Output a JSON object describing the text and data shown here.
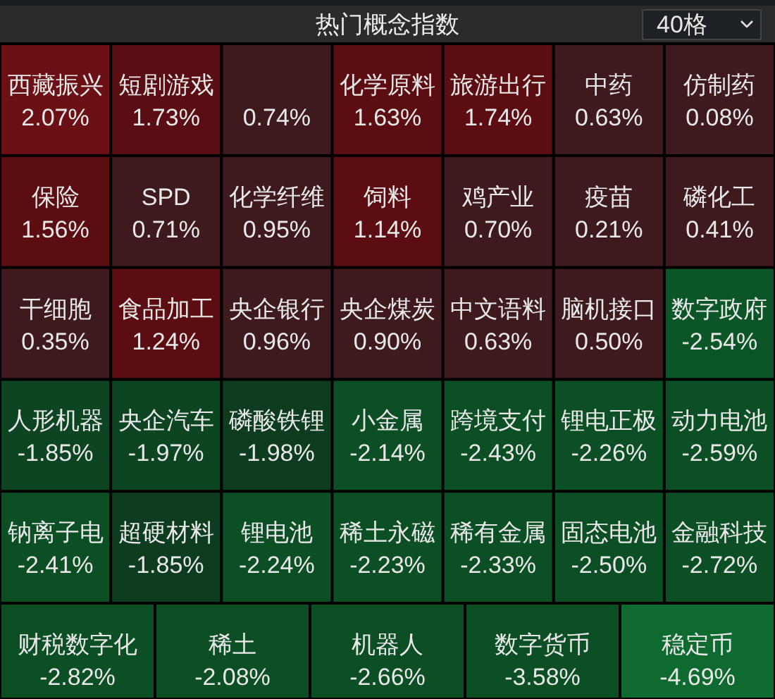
{
  "chart_data": {
    "type": "other",
    "title": "热门概念指数",
    "annotations": [
      "40格"
    ],
    "categories": [
      "西藏振兴",
      "短剧游戏",
      null,
      "化学原料",
      "旅游出行",
      "中药",
      "仿制药",
      "保险",
      "SPD",
      "化学纤维",
      "饲料",
      "鸡产业",
      "疫苗",
      "磷化工",
      "干细胞",
      "食品加工",
      "央企银行",
      "央企煤炭",
      "中文语料",
      "脑机接口",
      "数字政府",
      "人形机器",
      "央企汽车",
      "磷酸铁锂",
      "小金属",
      "跨境支付",
      "锂电正极",
      "动力电池",
      "钠离子电",
      "超硬材料",
      "锂电池",
      "稀土永磁",
      "稀有金属",
      "固态电池",
      "金融科技",
      "财税数字化",
      "稀土",
      "机器人",
      "数字货币",
      "稳定币"
    ],
    "values": [
      2.07,
      1.73,
      0.74,
      1.63,
      1.74,
      0.63,
      0.08,
      1.56,
      0.71,
      0.95,
      1.14,
      0.7,
      0.21,
      0.41,
      0.35,
      1.24,
      0.96,
      0.9,
      0.63,
      0.5,
      -2.54,
      -1.85,
      -1.97,
      -1.98,
      -2.14,
      -2.43,
      -2.26,
      -2.59,
      -2.41,
      -1.85,
      -2.24,
      -2.23,
      -2.33,
      -2.5,
      -2.72,
      -2.82,
      -2.08,
      -2.66,
      -3.58,
      -4.69
    ],
    "value_labels": [
      "2.07%",
      "1.73%",
      "0.74%",
      "1.63%",
      "1.74%",
      "0.63%",
      "0.08%",
      "1.56%",
      "0.71%",
      "0.95%",
      "1.14%",
      "0.70%",
      "0.21%",
      "0.41%",
      "0.35%",
      "1.24%",
      "0.96%",
      "0.90%",
      "0.63%",
      "0.50%",
      "-2.54%",
      "-1.85%",
      "-1.97%",
      "-1.98%",
      "-2.14%",
      "-2.43%",
      "-2.26%",
      "-2.59%",
      "-2.41%",
      "-1.85%",
      "-2.24%",
      "-2.23%",
      "-2.33%",
      "-2.50%",
      "-2.72%",
      "-2.82%",
      "-2.08%",
      "-2.66%",
      "-3.58%",
      "-4.69%"
    ],
    "colors": [
      "#6b1015",
      "#5a0d12",
      "#3e1a1f",
      "#5c0d12",
      "#5c0d12",
      "#3e1a1f",
      "#3e1a1f",
      "#5c0d12",
      "#3e1a1f",
      "#3e1a1f",
      "#5c0d12",
      "#3e1a1f",
      "#3e1a1f",
      "#3e1a1f",
      "#3e1a1f",
      "#5c0d12",
      "#3e1a1f",
      "#3e1a1f",
      "#3e1a1f",
      "#3e1a1f",
      "#0c5526",
      "#0d4522",
      "#0d4522",
      "#0d3d1e",
      "#0c4f24",
      "#0c4f24",
      "#0c4f24",
      "#0c4f24",
      "#0c4f24",
      "#0d3d1e",
      "#0c4f24",
      "#0c4f24",
      "#0c4f24",
      "#0c4f24",
      "#0c4f24",
      "#0c4f24",
      "#0c4f24",
      "#0c4f24",
      "#0c4f24",
      "#0f6a30"
    ]
  }
}
